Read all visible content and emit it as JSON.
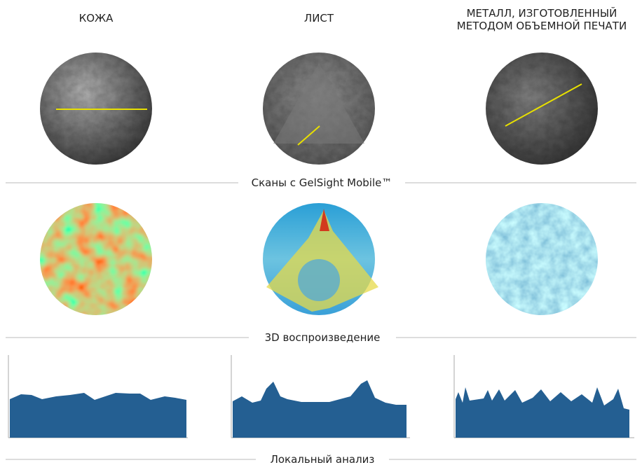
{
  "columns": [
    "КОЖА",
    "ЛИСТ",
    "МЕТАЛЛ, ИЗГОТОВЛЕННЫЙ МЕТОДОМ ОБЪЕМНОЙ ПЕЧАТИ"
  ],
  "sections": [
    "Сканы с GelSight Mobile™",
    "3D воспроизведение",
    "Локальный анализ"
  ]
}
